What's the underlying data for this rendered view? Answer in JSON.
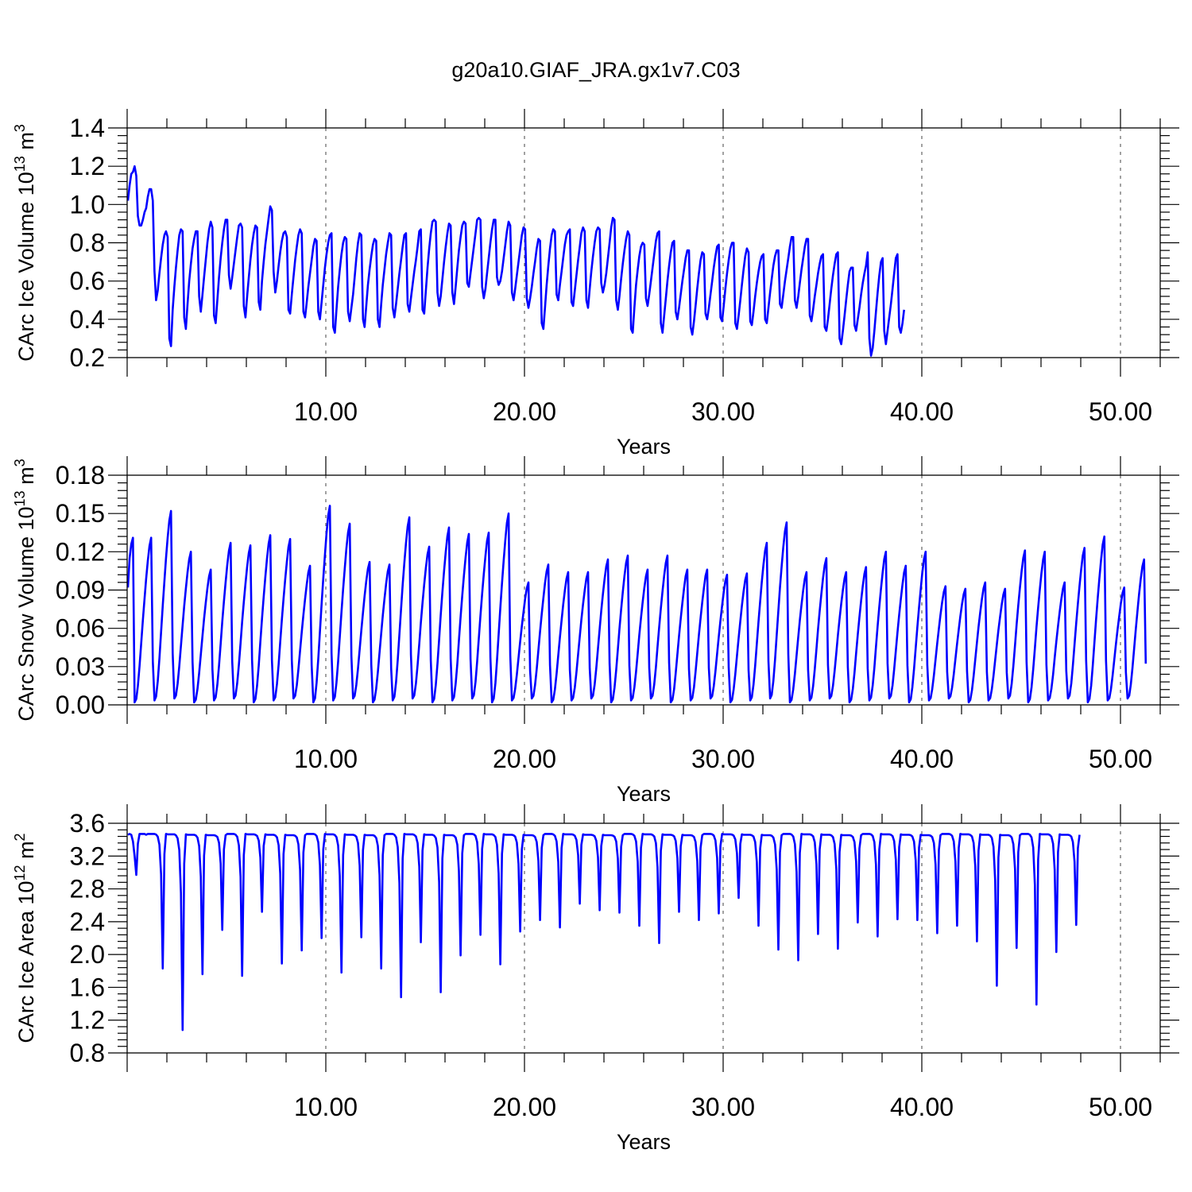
{
  "title": "g20a10.GIAF_JRA.gx1v7.C03",
  "style": {
    "line_color": "#0000ff",
    "grid": "vertical dashed at major x ticks"
  },
  "chart_data": [
    {
      "type": "line",
      "xlabel": "Years",
      "ylabel": "CArc Ice Volume 10",
      "ylabel_exp": "13",
      "ylabel_unit": " m",
      "ylabel_unit_exp": "3",
      "xlim": [
        0,
        52
      ],
      "ylim": [
        0.2,
        1.4
      ],
      "x_ticks": [
        10,
        20,
        30,
        40,
        50
      ],
      "x_tick_labels": [
        "10.00",
        "20.00",
        "30.00",
        "40.00",
        "50.00"
      ],
      "y_ticks": [
        0.2,
        0.4,
        0.6,
        0.8,
        1.0,
        1.2,
        1.4
      ],
      "y_tick_labels": [
        "0.2",
        "0.4",
        "0.6",
        "0.8",
        "1.0",
        "1.2",
        "1.4"
      ],
      "series": [
        {
          "x_start": 0.0417,
          "x_step": 0.0833,
          "values": [
            1.02,
            1.1,
            1.16,
            1.17,
            1.2,
            1.15,
            0.94,
            0.89,
            0.89,
            0.92,
            0.96,
            0.98,
            1.04,
            1.08,
            1.08,
            1.02,
            0.65,
            0.5,
            0.55,
            0.64,
            0.72,
            0.79,
            0.84,
            0.86,
            0.83,
            0.3,
            0.26,
            0.45,
            0.57,
            0.67,
            0.76,
            0.84,
            0.87,
            0.86,
            0.41,
            0.35,
            0.48,
            0.6,
            0.69,
            0.77,
            0.82,
            0.86,
            0.86,
            0.52,
            0.44,
            0.53,
            0.62,
            0.71,
            0.8,
            0.87,
            0.91,
            0.88,
            0.42,
            0.38,
            0.5,
            0.62,
            0.72,
            0.8,
            0.87,
            0.92,
            0.92,
            0.63,
            0.56,
            0.62,
            0.69,
            0.76,
            0.83,
            0.89,
            0.9,
            0.88,
            0.47,
            0.41,
            0.52,
            0.62,
            0.71,
            0.79,
            0.85,
            0.89,
            0.88,
            0.49,
            0.45,
            0.6,
            0.7,
            0.79,
            0.86,
            0.93,
            0.99,
            0.97,
            0.65,
            0.54,
            0.6,
            0.68,
            0.75,
            0.81,
            0.85,
            0.86,
            0.83,
            0.45,
            0.43,
            0.53,
            0.62,
            0.71,
            0.78,
            0.84,
            0.87,
            0.85,
            0.44,
            0.41,
            0.49,
            0.57,
            0.64,
            0.71,
            0.78,
            0.82,
            0.81,
            0.44,
            0.4,
            0.49,
            0.58,
            0.67,
            0.74,
            0.8,
            0.84,
            0.85,
            0.36,
            0.33,
            0.45,
            0.57,
            0.66,
            0.74,
            0.8,
            0.83,
            0.82,
            0.44,
            0.39,
            0.46,
            0.53,
            0.62,
            0.72,
            0.8,
            0.85,
            0.84,
            0.4,
            0.36,
            0.47,
            0.58,
            0.66,
            0.73,
            0.79,
            0.82,
            0.81,
            0.4,
            0.36,
            0.48,
            0.58,
            0.66,
            0.74,
            0.8,
            0.85,
            0.84,
            0.46,
            0.41,
            0.48,
            0.56,
            0.64,
            0.71,
            0.78,
            0.84,
            0.85,
            0.48,
            0.44,
            0.51,
            0.58,
            0.65,
            0.71,
            0.78,
            0.86,
            0.87,
            0.45,
            0.43,
            0.55,
            0.67,
            0.77,
            0.85,
            0.91,
            0.92,
            0.91,
            0.54,
            0.47,
            0.52,
            0.61,
            0.7,
            0.78,
            0.85,
            0.9,
            0.89,
            0.54,
            0.48,
            0.57,
            0.67,
            0.76,
            0.83,
            0.89,
            0.91,
            0.9,
            0.59,
            0.57,
            0.64,
            0.71,
            0.78,
            0.85,
            0.92,
            0.93,
            0.92,
            0.57,
            0.51,
            0.56,
            0.64,
            0.72,
            0.8,
            0.87,
            0.92,
            0.92,
            0.62,
            0.58,
            0.6,
            0.65,
            0.72,
            0.79,
            0.86,
            0.91,
            0.89,
            0.54,
            0.5,
            0.56,
            0.63,
            0.7,
            0.77,
            0.84,
            0.88,
            0.87,
            0.51,
            0.46,
            0.51,
            0.57,
            0.64,
            0.7,
            0.77,
            0.82,
            0.81,
            0.38,
            0.35,
            0.46,
            0.58,
            0.68,
            0.77,
            0.84,
            0.87,
            0.86,
            0.53,
            0.5,
            0.58,
            0.65,
            0.72,
            0.79,
            0.84,
            0.86,
            0.87,
            0.49,
            0.47,
            0.55,
            0.63,
            0.71,
            0.78,
            0.85,
            0.88,
            0.86,
            0.5,
            0.46,
            0.56,
            0.65,
            0.73,
            0.8,
            0.86,
            0.88,
            0.87,
            0.59,
            0.54,
            0.58,
            0.64,
            0.72,
            0.8,
            0.88,
            0.93,
            0.92,
            0.5,
            0.45,
            0.52,
            0.61,
            0.69,
            0.76,
            0.82,
            0.86,
            0.84,
            0.35,
            0.33,
            0.46,
            0.58,
            0.66,
            0.73,
            0.78,
            0.8,
            0.79,
            0.51,
            0.47,
            0.53,
            0.6,
            0.67,
            0.74,
            0.81,
            0.85,
            0.86,
            0.38,
            0.33,
            0.42,
            0.51,
            0.6,
            0.68,
            0.75,
            0.8,
            0.81,
            0.44,
            0.4,
            0.46,
            0.53,
            0.6,
            0.66,
            0.72,
            0.76,
            0.76,
            0.36,
            0.32,
            0.39,
            0.47,
            0.56,
            0.64,
            0.71,
            0.75,
            0.74,
            0.43,
            0.4,
            0.46,
            0.53,
            0.6,
            0.67,
            0.73,
            0.78,
            0.79,
            0.41,
            0.39,
            0.47,
            0.56,
            0.64,
            0.71,
            0.77,
            0.8,
            0.8,
            0.38,
            0.35,
            0.42,
            0.5,
            0.58,
            0.66,
            0.73,
            0.77,
            0.75,
            0.39,
            0.37,
            0.44,
            0.52,
            0.59,
            0.65,
            0.7,
            0.73,
            0.74,
            0.4,
            0.38,
            0.46,
            0.54,
            0.61,
            0.68,
            0.73,
            0.76,
            0.76,
            0.48,
            0.46,
            0.53,
            0.6,
            0.66,
            0.72,
            0.78,
            0.83,
            0.83,
            0.5,
            0.46,
            0.52,
            0.59,
            0.66,
            0.72,
            0.78,
            0.82,
            0.82,
            0.42,
            0.39,
            0.45,
            0.52,
            0.58,
            0.64,
            0.69,
            0.73,
            0.74,
            0.36,
            0.34,
            0.4,
            0.48,
            0.56,
            0.63,
            0.69,
            0.74,
            0.75,
            0.3,
            0.27,
            0.34,
            0.42,
            0.5,
            0.58,
            0.65,
            0.67,
            0.67,
            0.37,
            0.34,
            0.4,
            0.46,
            0.53,
            0.59,
            0.64,
            0.68,
            0.75,
            0.3,
            0.21,
            0.25,
            0.34,
            0.44,
            0.54,
            0.63,
            0.7,
            0.72,
            0.34,
            0.27,
            0.34,
            0.41,
            0.48,
            0.56,
            0.64,
            0.72,
            0.74,
            0.36,
            0.33,
            0.38,
            0.45
          ]
        }
      ]
    },
    {
      "type": "line",
      "xlabel": "Years",
      "ylabel": "CArc Snow Volume 10",
      "ylabel_exp": "13",
      "ylabel_unit": " m",
      "ylabel_unit_exp": "3",
      "xlim": [
        0,
        52
      ],
      "ylim": [
        0.0,
        0.18
      ],
      "x_ticks": [
        10,
        20,
        30,
        40,
        50
      ],
      "x_tick_labels": [
        "10.00",
        "20.00",
        "30.00",
        "40.00",
        "50.00"
      ],
      "y_ticks": [
        0.0,
        0.03,
        0.06,
        0.09,
        0.12,
        0.15,
        0.18
      ],
      "y_tick_labels": [
        "0.00",
        "0.03",
        "0.06",
        "0.09",
        "0.12",
        "0.15",
        "0.18"
      ],
      "series": [
        {
          "x_start": 0.0417,
          "x_step": 0.0833,
          "peaks": [
            0.131,
            0.152,
            0.12,
            0.106,
            0.127,
            0.125,
            0.133,
            0.13,
            0.109,
            0.156,
            0.142,
            0.112,
            0.11,
            0.147,
            0.124,
            0.139,
            0.134,
            0.135,
            0.15,
            0.096,
            0.11,
            0.104,
            0.104,
            0.114,
            0.117,
            0.106,
            0.117,
            0.106,
            0.106,
            0.102,
            0.103,
            0.127,
            0.143,
            0.104,
            0.115,
            0.104,
            0.108,
            0.12,
            0.109,
            0.12,
            0.093,
            0.091,
            0.096,
            0.091,
            0.121,
            0.12,
            0.096,
            0.123,
            0.132,
            0.092,
            0.114
          ],
          "values": []
        }
      ]
    },
    {
      "type": "line",
      "xlabel": "Years",
      "ylabel": "CArc Ice Area 10",
      "ylabel_exp": "12",
      "ylabel_unit": " m",
      "ylabel_unit_exp": "2",
      "xlim": [
        0,
        52
      ],
      "ylim": [
        0.8,
        3.6
      ],
      "x_ticks": [
        10,
        20,
        30,
        40,
        50
      ],
      "x_tick_labels": [
        "10.00",
        "20.00",
        "30.00",
        "40.00",
        "50.00"
      ],
      "y_ticks": [
        0.8,
        1.2,
        1.6,
        2.0,
        2.4,
        2.8,
        3.2,
        3.6
      ],
      "y_tick_labels": [
        "0.8",
        "1.2",
        "1.6",
        "2.0",
        "2.4",
        "2.8",
        "3.2",
        "3.6"
      ],
      "series": [
        {
          "x_start": 0.0417,
          "x_step": 0.0833,
          "minima": [
            2.97,
            1.83,
            1.08,
            1.76,
            2.3,
            1.74,
            2.52,
            1.89,
            2.05,
            2.2,
            1.78,
            2.21,
            1.83,
            1.48,
            2.15,
            1.54,
            1.99,
            2.24,
            1.88,
            2.28,
            2.42,
            2.33,
            2.62,
            2.54,
            2.51,
            2.35,
            2.14,
            2.52,
            2.42,
            2.5,
            2.69,
            2.35,
            2.06,
            1.93,
            2.25,
            2.07,
            2.39,
            2.22,
            2.43,
            2.42,
            2.26,
            2.35,
            2.16,
            1.62,
            2.08,
            1.39,
            2.03,
            2.36
          ],
          "values": []
        }
      ]
    }
  ]
}
